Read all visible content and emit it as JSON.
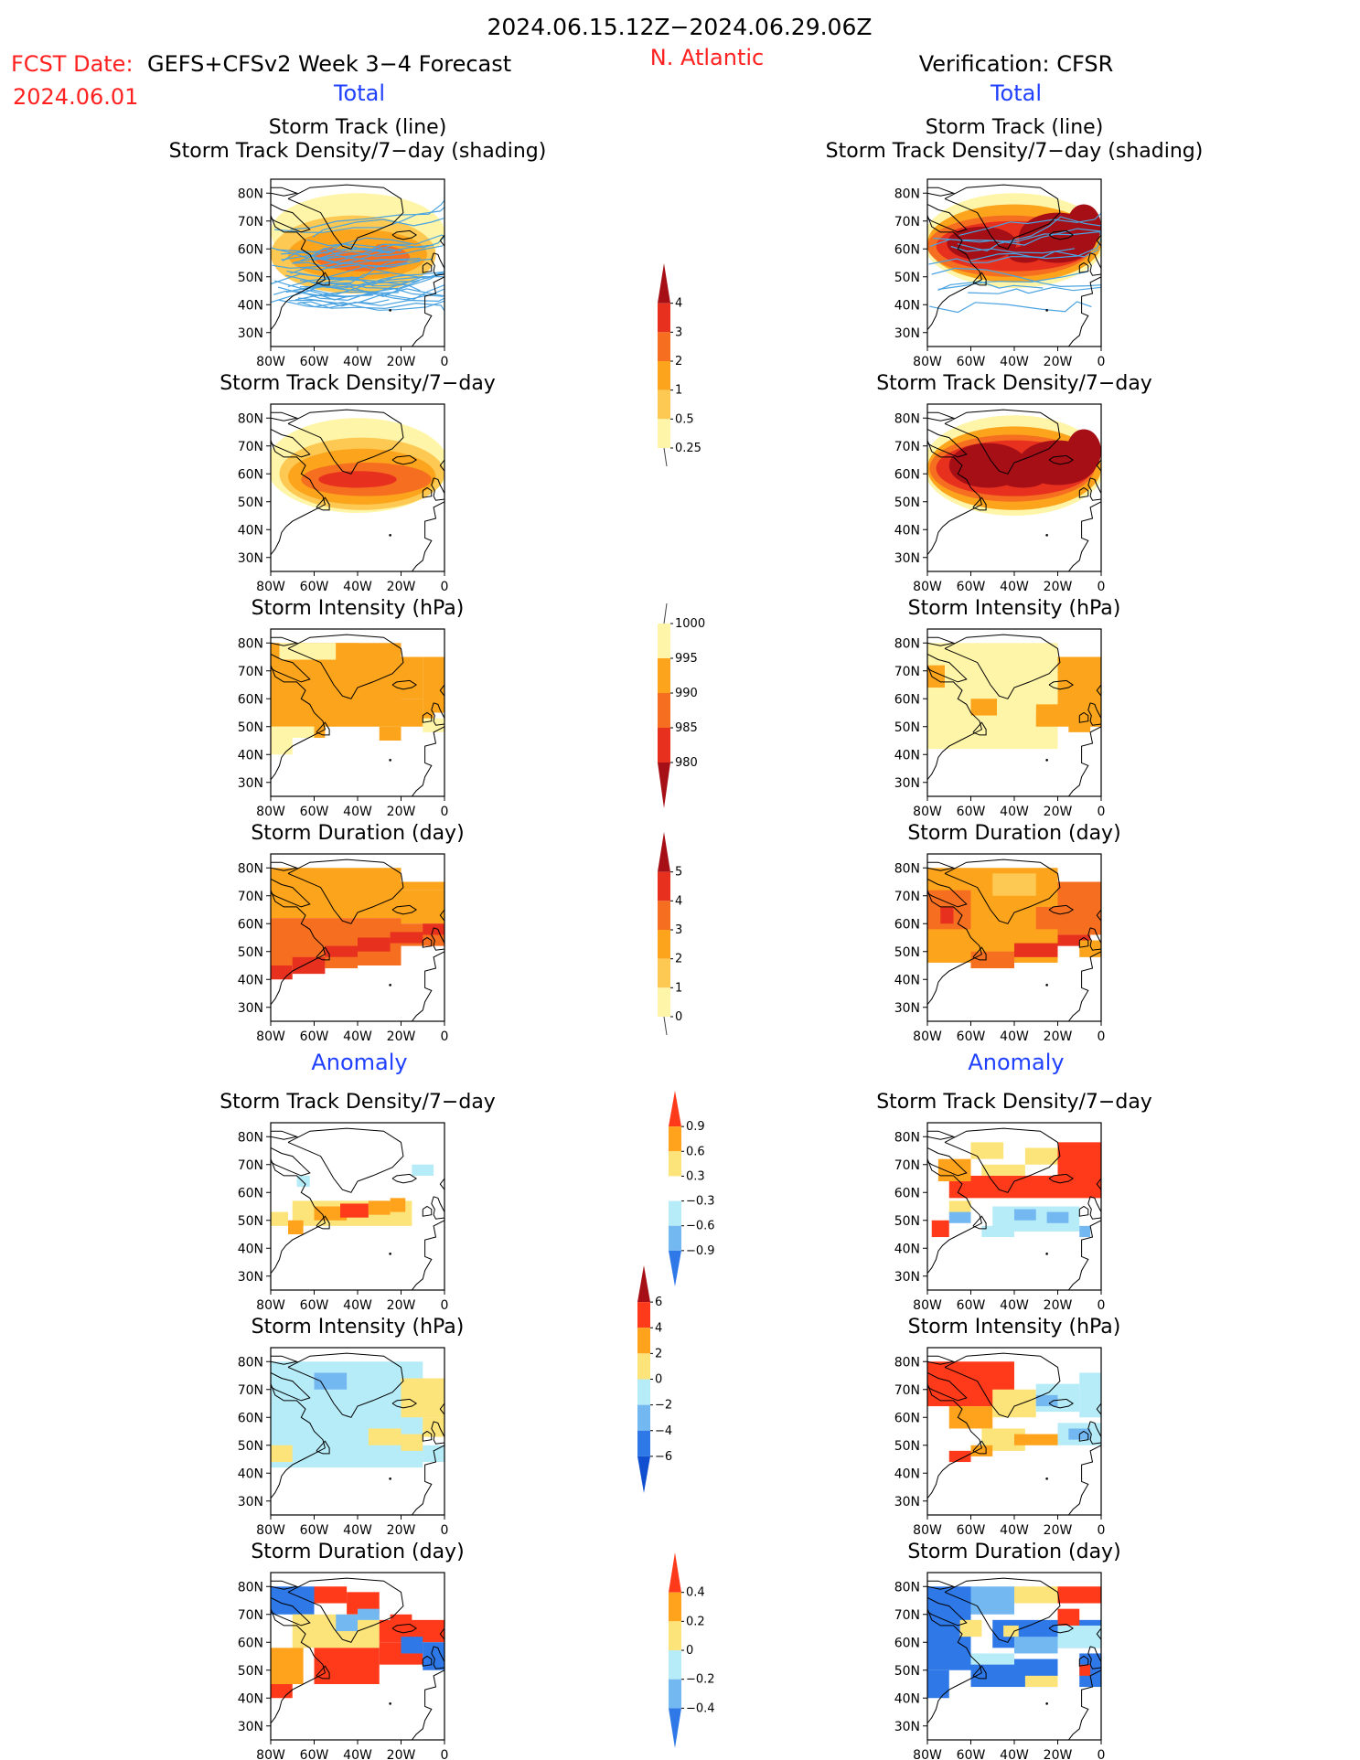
{
  "header": {
    "period": "2024.06.15.12Z−2024.06.29.06Z",
    "fcst_date_label": "FCST Date:",
    "fcst_date": "2024.06.01",
    "model_title": "GEFS+CFSv2 Week 3−4 Forecast",
    "region": "N. Atlantic",
    "verification": "Verification: CFSR",
    "total_left": "Total",
    "total_right": "Total",
    "anomaly_left": "Anomaly",
    "anomaly_right": "Anomaly"
  },
  "colors": {
    "title": "#000000",
    "red": "#ff2020",
    "blue": "#2040ff",
    "track_line": "#4aa3e0"
  },
  "chart_data": [
    {
      "type": "heatmap",
      "id": "tot-left-1",
      "title": "Storm Track (line)",
      "subtitle": "Storm Track Density/7−day (shading)",
      "x_tick_labels": [
        "80W",
        "60W",
        "40W",
        "20W",
        "0"
      ],
      "y_tick_labels": [
        "80N",
        "70N",
        "60N",
        "50N",
        "40N",
        "30N"
      ],
      "xlim": [
        -80,
        0
      ],
      "ylim": [
        25,
        85
      ],
      "has_tracks": true
    },
    {
      "type": "heatmap",
      "id": "tot-right-1",
      "title": "Storm Track (line)",
      "subtitle": "Storm Track Density/7−day (shading)",
      "x_tick_labels": [
        "80W",
        "60W",
        "40W",
        "20W",
        "0"
      ],
      "y_tick_labels": [
        "80N",
        "70N",
        "60N",
        "50N",
        "40N",
        "30N"
      ],
      "xlim": [
        -80,
        0
      ],
      "ylim": [
        25,
        85
      ],
      "has_tracks": true
    },
    {
      "type": "heatmap",
      "id": "tot-left-2",
      "title": "Storm Track Density/7−day",
      "x_tick_labels": [
        "80W",
        "60W",
        "40W",
        "20W",
        "0"
      ],
      "y_tick_labels": [
        "80N",
        "70N",
        "60N",
        "50N",
        "40N",
        "30N"
      ]
    },
    {
      "type": "heatmap",
      "id": "tot-right-2",
      "title": "Storm Track Density/7−day",
      "x_tick_labels": [
        "80W",
        "60W",
        "40W",
        "20W",
        "0"
      ],
      "y_tick_labels": [
        "80N",
        "70N",
        "60N",
        "50N",
        "40N",
        "30N"
      ]
    },
    {
      "type": "heatmap",
      "id": "tot-left-3",
      "title": "Storm Intensity (hPa)",
      "x_tick_labels": [
        "80W",
        "60W",
        "40W",
        "20W",
        "0"
      ],
      "y_tick_labels": [
        "80N",
        "70N",
        "60N",
        "50N",
        "40N",
        "30N"
      ]
    },
    {
      "type": "heatmap",
      "id": "tot-right-3",
      "title": "Storm Intensity (hPa)",
      "x_tick_labels": [
        "80W",
        "60W",
        "40W",
        "20W",
        "0"
      ],
      "y_tick_labels": [
        "80N",
        "70N",
        "60N",
        "50N",
        "40N",
        "30N"
      ]
    },
    {
      "type": "heatmap",
      "id": "tot-left-4",
      "title": "Storm Duration (day)",
      "x_tick_labels": [
        "80W",
        "60W",
        "40W",
        "20W",
        "0"
      ],
      "y_tick_labels": [
        "80N",
        "70N",
        "60N",
        "50N",
        "40N",
        "30N"
      ]
    },
    {
      "type": "heatmap",
      "id": "tot-right-4",
      "title": "Storm Duration (day)",
      "x_tick_labels": [
        "80W",
        "60W",
        "40W",
        "20W",
        "0"
      ],
      "y_tick_labels": [
        "80N",
        "70N",
        "60N",
        "50N",
        "40N",
        "30N"
      ]
    },
    {
      "type": "heatmap",
      "id": "anom-left-1",
      "title": "Storm Track Density/7−day",
      "x_tick_labels": [
        "80W",
        "60W",
        "40W",
        "20W",
        "0"
      ],
      "y_tick_labels": [
        "80N",
        "70N",
        "60N",
        "50N",
        "40N",
        "30N"
      ]
    },
    {
      "type": "heatmap",
      "id": "anom-right-1",
      "title": "Storm Track Density/7−day",
      "x_tick_labels": [
        "80W",
        "60W",
        "40W",
        "20W",
        "0"
      ],
      "y_tick_labels": [
        "80N",
        "70N",
        "60N",
        "50N",
        "40N",
        "30N"
      ]
    },
    {
      "type": "heatmap",
      "id": "anom-left-2",
      "title": "Storm Intensity (hPa)",
      "x_tick_labels": [
        "80W",
        "60W",
        "40W",
        "20W",
        "0"
      ],
      "y_tick_labels": [
        "80N",
        "70N",
        "60N",
        "50N",
        "40N",
        "30N"
      ]
    },
    {
      "type": "heatmap",
      "id": "anom-right-2",
      "title": "Storm Intensity (hPa)",
      "x_tick_labels": [
        "80W",
        "60W",
        "40W",
        "20W",
        "0"
      ],
      "y_tick_labels": [
        "80N",
        "70N",
        "60N",
        "50N",
        "40N",
        "30N"
      ]
    },
    {
      "type": "heatmap",
      "id": "anom-left-3",
      "title": "Storm Duration (day)",
      "x_tick_labels": [
        "80W",
        "60W",
        "40W",
        "20W",
        "0"
      ],
      "y_tick_labels": [
        "80N",
        "70N",
        "60N",
        "50N",
        "40N",
        "30N"
      ]
    },
    {
      "type": "heatmap",
      "id": "anom-right-3",
      "title": "Storm Duration (day)",
      "x_tick_labels": [
        "80W",
        "60W",
        "40W",
        "20W",
        "0"
      ],
      "y_tick_labels": [
        "80N",
        "70N",
        "60N",
        "50N",
        "40N",
        "30N"
      ]
    }
  ],
  "colorbars": [
    {
      "id": "cb-density",
      "labels": [
        "4",
        "3",
        "2",
        "1",
        "0.5",
        "0.25"
      ],
      "colors": [
        "#a50f15",
        "#e8301f",
        "#f66e20",
        "#fca41c",
        "#fdc952",
        "#fff5a8"
      ],
      "direction": "upper"
    },
    {
      "id": "cb-intensity",
      "labels": [
        "1000",
        "995",
        "990",
        "985",
        "980"
      ],
      "colors": [
        "#fff5a8",
        "#fca41c",
        "#f66e20",
        "#e8301f",
        "#a50f15"
      ],
      "direction": "lower"
    },
    {
      "id": "cb-duration",
      "labels": [
        "5",
        "4",
        "3",
        "2",
        "1",
        "0"
      ],
      "colors": [
        "#a50f15",
        "#e8301f",
        "#f66e20",
        "#fca41c",
        "#fdc952",
        "#fff5a8"
      ],
      "direction": "upper"
    },
    {
      "id": "cb-anom-density",
      "labels": [
        "0.9",
        "0.6",
        "0.3",
        "−0.3",
        "−0.6",
        "−0.9"
      ],
      "colors": [
        "#ff3a1a",
        "#ffa21c",
        "#fde47a",
        "#ffffff",
        "#b6ecf8",
        "#74b8f2",
        "#2e78e8"
      ],
      "direction": "both"
    },
    {
      "id": "cb-anom-intensity",
      "labels": [
        "6",
        "4",
        "2",
        "0",
        "−2",
        "−4",
        "−6"
      ],
      "colors": [
        "#a50f15",
        "#ff3a1a",
        "#ffa21c",
        "#fde47a",
        "#b6ecf8",
        "#74b8f2",
        "#2e78e8",
        "#1050d0"
      ],
      "direction": "both"
    },
    {
      "id": "cb-anom-duration",
      "labels": [
        "0.4",
        "0.2",
        "0",
        "−0.2",
        "−0.4"
      ],
      "colors": [
        "#ff3a1a",
        "#ffa21c",
        "#fde47a",
        "#b6ecf8",
        "#74b8f2",
        "#2e78e8"
      ],
      "direction": "both"
    }
  ]
}
